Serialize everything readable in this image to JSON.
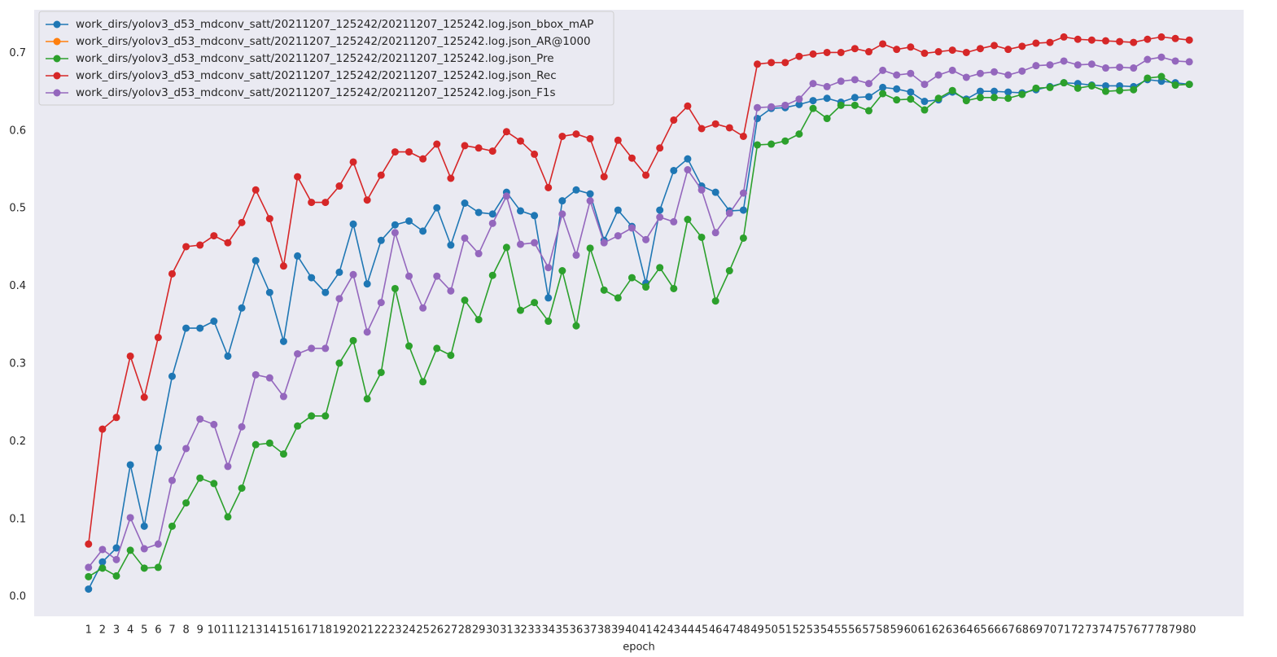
{
  "chart_data": {
    "type": "line",
    "xlabel": "epoch",
    "x": [
      1,
      2,
      3,
      4,
      5,
      6,
      7,
      8,
      9,
      10,
      11,
      12,
      13,
      14,
      15,
      16,
      17,
      18,
      19,
      20,
      21,
      22,
      23,
      24,
      25,
      26,
      27,
      28,
      29,
      30,
      31,
      32,
      33,
      34,
      35,
      36,
      37,
      38,
      39,
      40,
      41,
      42,
      43,
      44,
      45,
      46,
      47,
      48,
      49,
      50,
      51,
      52,
      53,
      54,
      55,
      56,
      57,
      58,
      59,
      60,
      61,
      62,
      63,
      64,
      65,
      66,
      67,
      68,
      69,
      70,
      71,
      72,
      73,
      74,
      75,
      76,
      77,
      78,
      79,
      80
    ],
    "xlim": [
      -2.9,
      83.9
    ],
    "ylim": [
      -0.025,
      0.756
    ],
    "yticks": [
      {
        "value": 0,
        "label": "0.0"
      },
      0.1,
      0.2,
      0.3,
      0.4,
      0.5,
      0.6,
      0.7
    ],
    "grid": false,
    "legend": "upper left",
    "series": [
      {
        "name": "work_dirs/yolov3_d53_mdconv_satt/20211207_125242/20211207_125242.log.json_bbox_mAP",
        "color": "#1f77b4",
        "values": [
          0.01,
          0.045,
          0.063,
          0.17,
          0.091,
          0.192,
          0.284,
          0.346,
          0.346,
          0.355,
          0.31,
          0.372,
          0.433,
          0.392,
          0.329,
          0.439,
          0.411,
          0.392,
          0.418,
          0.48,
          0.403,
          0.459,
          0.479,
          0.484,
          0.471,
          0.501,
          0.453,
          0.507,
          0.495,
          0.493,
          0.521,
          0.497,
          0.491,
          0.385,
          0.51,
          0.524,
          0.519,
          0.459,
          0.498,
          0.477,
          0.404,
          0.498,
          0.549,
          0.564,
          0.529,
          0.521,
          0.497,
          0.498,
          0.616,
          0.629,
          0.63,
          0.634,
          0.639,
          0.642,
          0.637,
          0.643,
          0.644,
          0.656,
          0.654,
          0.65,
          0.638,
          0.64,
          0.65,
          0.641,
          0.651,
          0.651,
          0.65,
          0.649,
          0.653,
          0.657,
          0.662,
          0.661,
          0.659,
          0.658,
          0.658,
          0.657,
          0.666,
          0.664,
          0.662,
          0.66
        ]
      },
      {
        "name": "work_dirs/yolov3_d53_mdconv_satt/20211207_125242/20211207_125242.log.json_AR@1000",
        "color": "#ff7f0e",
        "values": [
          null,
          null,
          null,
          null,
          null,
          null,
          null,
          null,
          null,
          null,
          null,
          null,
          null,
          null,
          null,
          null,
          null,
          null,
          null,
          null,
          null,
          null,
          null,
          null,
          null,
          null,
          null,
          null,
          null,
          null,
          null,
          null,
          null,
          null,
          null,
          null,
          null,
          null,
          null,
          null,
          null,
          null,
          null,
          null,
          null,
          null,
          null,
          null,
          null,
          null,
          null,
          null,
          null,
          null,
          null,
          null,
          null,
          null,
          null,
          null,
          null,
          null,
          null,
          null,
          null,
          null,
          null,
          null,
          null,
          null,
          null,
          null,
          null,
          null,
          null,
          null,
          null,
          null,
          null,
          null
        ]
      },
      {
        "name": "work_dirs/yolov3_d53_mdconv_satt/20211207_125242/20211207_125242.log.json_Pre",
        "color": "#2ca02c",
        "values": [
          0.026,
          0.037,
          0.027,
          0.06,
          0.037,
          0.038,
          0.091,
          0.121,
          0.153,
          0.146,
          0.103,
          0.14,
          0.196,
          0.198,
          0.184,
          0.22,
          0.233,
          0.233,
          0.301,
          0.33,
          0.255,
          0.289,
          0.397,
          0.323,
          0.277,
          0.32,
          0.311,
          0.382,
          0.357,
          0.414,
          0.45,
          0.369,
          0.379,
          0.355,
          0.42,
          0.349,
          0.449,
          0.395,
          0.385,
          0.411,
          0.399,
          0.424,
          0.397,
          0.486,
          0.463,
          0.381,
          0.42,
          0.462,
          0.582,
          0.583,
          0.587,
          0.596,
          0.629,
          0.616,
          0.633,
          0.633,
          0.626,
          0.648,
          0.64,
          0.641,
          0.627,
          0.642,
          0.652,
          0.639,
          0.643,
          0.643,
          0.642,
          0.647,
          0.655,
          0.656,
          0.662,
          0.655,
          0.658,
          0.651,
          0.652,
          0.653,
          0.668,
          0.67,
          0.659,
          0.66
        ]
      },
      {
        "name": "work_dirs/yolov3_d53_mdconv_satt/20211207_125242/20211207_125242.log.json_Rec",
        "color": "#d62728",
        "values": [
          0.068,
          0.216,
          0.231,
          0.31,
          0.257,
          0.334,
          0.416,
          0.451,
          0.453,
          0.465,
          0.456,
          0.482,
          0.524,
          0.487,
          0.426,
          0.541,
          0.508,
          0.508,
          0.529,
          0.56,
          0.511,
          0.543,
          0.573,
          0.573,
          0.564,
          0.583,
          0.539,
          0.581,
          0.578,
          0.574,
          0.599,
          0.587,
          0.57,
          0.527,
          0.593,
          0.596,
          0.59,
          0.541,
          0.588,
          0.565,
          0.543,
          0.578,
          0.614,
          0.632,
          0.603,
          0.609,
          0.604,
          0.593,
          0.686,
          0.688,
          0.688,
          0.696,
          0.699,
          0.701,
          0.701,
          0.706,
          0.702,
          0.712,
          0.705,
          0.708,
          0.7,
          0.702,
          0.704,
          0.701,
          0.706,
          0.71,
          0.705,
          0.709,
          0.713,
          0.714,
          0.721,
          0.718,
          0.717,
          0.716,
          0.715,
          0.714,
          0.718,
          0.721,
          0.719,
          0.717
        ]
      },
      {
        "name": "work_dirs/yolov3_d53_mdconv_satt/20211207_125242/20211207_125242.log.json_F1s",
        "color": "#9467bd",
        "values": [
          0.038,
          0.061,
          0.048,
          0.102,
          0.062,
          0.068,
          0.15,
          0.191,
          0.229,
          0.222,
          0.168,
          0.219,
          0.286,
          0.282,
          0.258,
          0.313,
          0.32,
          0.32,
          0.384,
          0.415,
          0.341,
          0.379,
          0.469,
          0.413,
          0.372,
          0.413,
          0.394,
          0.462,
          0.442,
          0.481,
          0.516,
          0.454,
          0.456,
          0.424,
          0.493,
          0.44,
          0.51,
          0.456,
          0.465,
          0.475,
          0.46,
          0.489,
          0.483,
          0.55,
          0.524,
          0.469,
          0.494,
          0.52,
          0.63,
          0.631,
          0.633,
          0.641,
          0.661,
          0.657,
          0.664,
          0.666,
          0.661,
          0.678,
          0.672,
          0.674,
          0.66,
          0.672,
          0.678,
          0.669,
          0.674,
          0.676,
          0.672,
          0.677,
          0.684,
          0.685,
          0.69,
          0.685,
          0.686,
          0.681,
          0.682,
          0.681,
          0.692,
          0.695,
          0.69,
          0.689
        ]
      }
    ]
  }
}
